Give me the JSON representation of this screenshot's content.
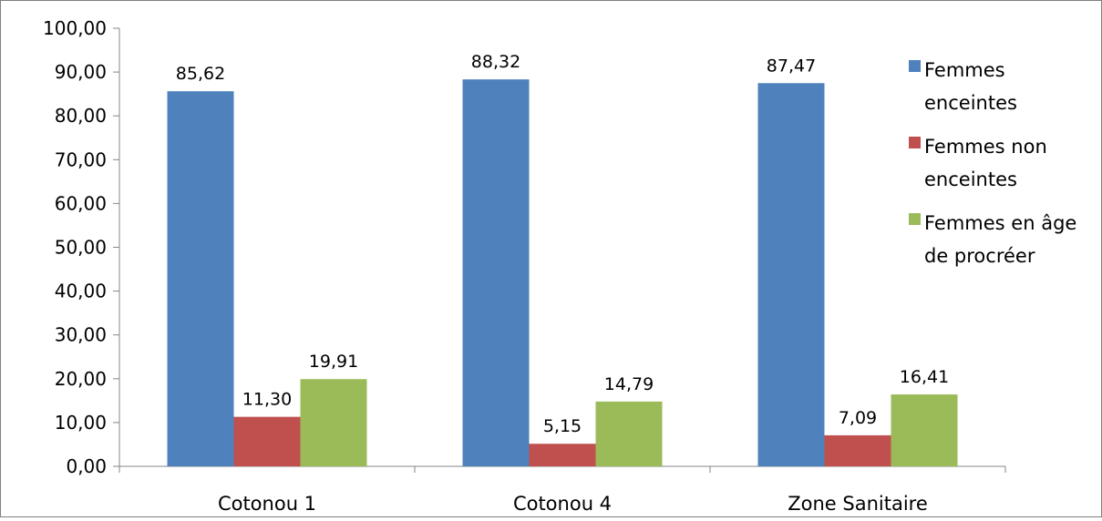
{
  "chart_data": {
    "type": "bar",
    "categories": [
      "Cotonou 1",
      "Cotonou 4",
      "Zone Sanitaire"
    ],
    "series": [
      {
        "name": "Femmes enceintes",
        "values": [
          85.62,
          88.32,
          87.47
        ],
        "labels": [
          "85,62",
          "88,32",
          "87,47"
        ],
        "color": "#4F81BD"
      },
      {
        "name": "Femmes non enceintes",
        "values": [
          11.3,
          5.15,
          7.09
        ],
        "labels": [
          "11,30",
          "5,15",
          "7,09"
        ],
        "color": "#C0504D"
      },
      {
        "name": "Femmes en âge de procréer",
        "values": [
          19.91,
          14.79,
          16.41
        ],
        "labels": [
          "19,91",
          "14,79",
          "16,41"
        ],
        "color": "#9BBB59"
      }
    ],
    "legend_lines": [
      [
        "Femmes",
        "enceintes"
      ],
      [
        "Femmes non",
        "enceintes"
      ],
      [
        "Femmes en âge",
        "de procréer"
      ]
    ],
    "y_ticks": [
      "0,00",
      "10,00",
      "20,00",
      "30,00",
      "40,00",
      "50,00",
      "60,00",
      "70,00",
      "80,00",
      "90,00",
      "100,00"
    ],
    "ylim": [
      0,
      100
    ],
    "title": "",
    "xlabel": "",
    "ylabel": "",
    "legend_position": "right",
    "grid": false
  }
}
